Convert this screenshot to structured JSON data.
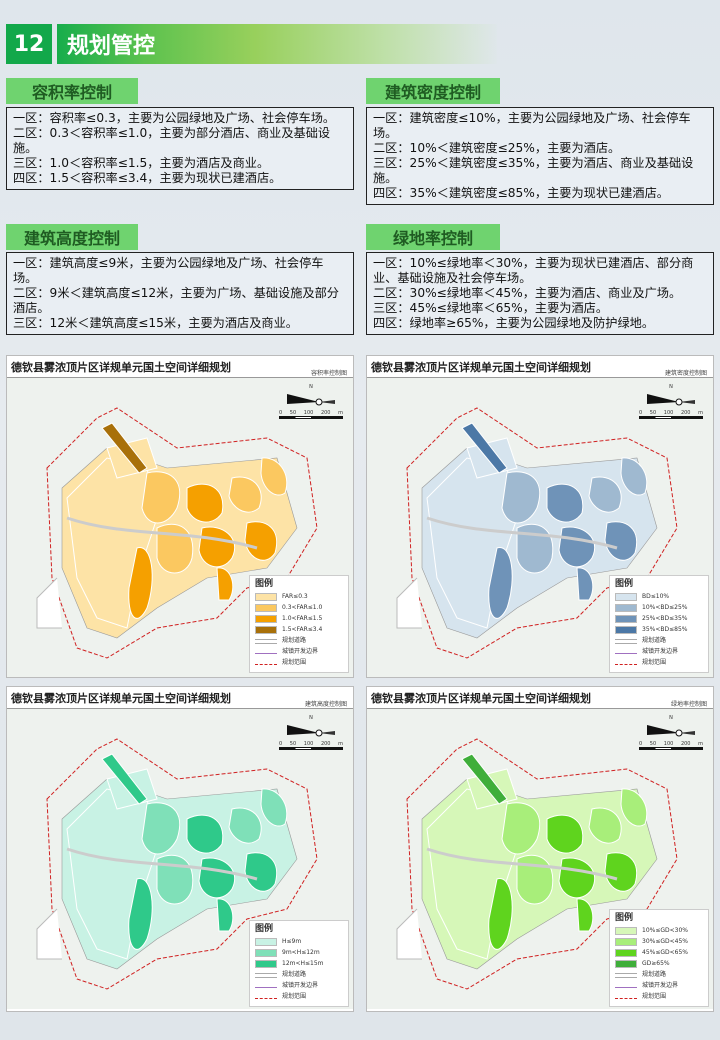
{
  "header": {
    "number": "12",
    "title": "规划管控"
  },
  "sections": [
    {
      "title": "容积率控制",
      "lines": [
        "一区：容积率≤0.3，主要为公园绿地及广场、社会停车场。",
        "二区：0.3＜容积率≤1.0，主要为部分酒店、商业及基础设施。",
        "三区：1.0＜容积率≤1.5，主要为酒店及商业。",
        "四区：1.5＜容积率≤3.4，主要为现状已建酒店。"
      ]
    },
    {
      "title": "建筑密度控制",
      "lines": [
        "一区：建筑密度≤10%，主要为公园绿地及广场、社会停车场。",
        "二区：10%＜建筑密度≤25%，主要为酒店。",
        "三区：25%＜建筑密度≤35%，主要为酒店、商业及基础设施。",
        "四区：35%＜建筑密度≤85%，主要为现状已建酒店。"
      ]
    },
    {
      "title": "建筑高度控制",
      "lines": [
        "一区：建筑高度≤9米，主要为公园绿地及广场、社会停车场。",
        "二区：9米＜建筑高度≤12米，主要为广场、基础设施及部分酒店。",
        "三区：12米＜建筑高度≤15米，主要为酒店及商业。"
      ]
    },
    {
      "title": "绿地率控制",
      "lines": [
        "一区：10%≤绿地率＜30%，主要为现状已建酒店、部分商业、基础设施及社会停车场。",
        "二区：30%≤绿地率＜45%，主要为酒店、商业及广场。",
        "三区：45%≤绿地率＜65%，主要为酒店。",
        "四区：绿地率≥65%，主要为公园绿地及防护绿地。"
      ]
    }
  ],
  "maps": [
    {
      "title": "德钦县雾浓顶片区详规单元国土空间详细规划",
      "subtitle": "容积率控制图",
      "legend_title": "图例",
      "zones": [
        {
          "label": "FAR≤0.3",
          "color": "#fde3a6"
        },
        {
          "label": "0.3<FAR≤1.0",
          "color": "#fbc860"
        },
        {
          "label": "1.0<FAR≤1.5",
          "color": "#f5a000"
        },
        {
          "label": "1.5<FAR≤3.4",
          "color": "#a8700a"
        }
      ]
    },
    {
      "title": "德钦县雾浓顶片区详规单元国土空间详细规划",
      "subtitle": "建筑密度控制图",
      "legend_title": "图例",
      "zones": [
        {
          "label": "BD≤10%",
          "color": "#d6e4ee"
        },
        {
          "label": "10%<BD≤25%",
          "color": "#9fb9d0"
        },
        {
          "label": "25%<BD≤35%",
          "color": "#6f93b8"
        },
        {
          "label": "35%<BD≤85%",
          "color": "#4c78a6"
        }
      ]
    },
    {
      "title": "德钦县雾浓顶片区详规单元国土空间详细规划",
      "subtitle": "建筑高度控制图",
      "legend_title": "图例",
      "zones": [
        {
          "label": "H≤9m",
          "color": "#c8f2e4"
        },
        {
          "label": "9m<H≤12m",
          "color": "#7fe0b8"
        },
        {
          "label": "12m<H≤15m",
          "color": "#2fc98a"
        }
      ]
    },
    {
      "title": "德钦县雾浓顶片区详规单元国土空间详细规划",
      "subtitle": "绿地率控制图",
      "legend_title": "图例",
      "zones": [
        {
          "label": "10%≤GD<30%",
          "color": "#d6f7b8"
        },
        {
          "label": "30%≤GD<45%",
          "color": "#a8ee7a"
        },
        {
          "label": "45%≤GD<65%",
          "color": "#5fd41e"
        },
        {
          "label": "GD≥65%",
          "color": "#3fae3a"
        }
      ]
    }
  ],
  "legend_common": [
    "规划道路",
    "城镇开发边界",
    "规划范围"
  ],
  "scale": {
    "north": "N",
    "ticks": [
      "0",
      "50",
      "100",
      "200"
    ],
    "unit": "m"
  }
}
